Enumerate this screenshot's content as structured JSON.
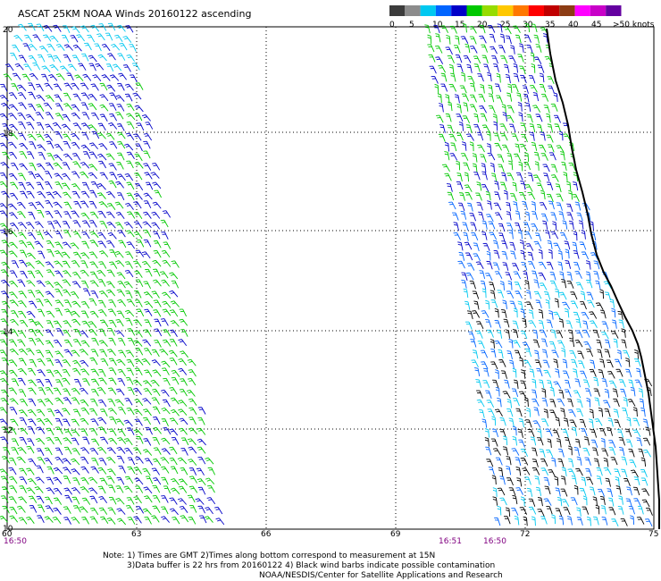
{
  "title": "ASCAT 25KM NOAA Winds 20160122 ascending",
  "colorbar": {
    "colors": [
      "#3c3c3c",
      "#8c8c8c",
      "#00c8f0",
      "#0064ff",
      "#0000c8",
      "#00c800",
      "#96dc00",
      "#ffc800",
      "#ff7800",
      "#ff0000",
      "#c00000",
      "#8c3c14",
      "#ff00ff",
      "#c800c8",
      "#6400a0"
    ],
    "labels": [
      "0",
      "5",
      "10",
      "15",
      "20",
      "25",
      "30",
      "35",
      "40",
      "45",
      ">50 knots"
    ]
  },
  "axes": {
    "x_ticks": [
      "60",
      "63",
      "66",
      "69",
      "72",
      "75"
    ],
    "y_ticks": [
      "20",
      "18",
      "16",
      "14",
      "12",
      "10"
    ]
  },
  "times": [
    "16:50",
    "16:51",
    "16:50"
  ],
  "notes": [
    "Note: 1) Times are GMT 2)Times along bottom correspond to measurement at 15N",
    "3)Data buffer is 22 hrs from 20160122 4) Black wind barbs indicate possible contamination",
    "NOAA/NESDIS/Center for Satellite Applications and Research"
  ],
  "swaths": [
    {
      "name": "western-swath",
      "dominant_speeds_knots": "10-25",
      "colors": [
        "#00c8f0",
        "#0000c8",
        "#00c800"
      ]
    },
    {
      "name": "eastern-swath",
      "dominant_speeds_knots": "5-25",
      "colors": [
        "#00c8f0",
        "#0064ff",
        "#0000c8",
        "#00c800",
        "#000000"
      ]
    }
  ],
  "theme": {
    "grid": "#000000",
    "time_color": "#800080",
    "land_outline": "#000000"
  }
}
